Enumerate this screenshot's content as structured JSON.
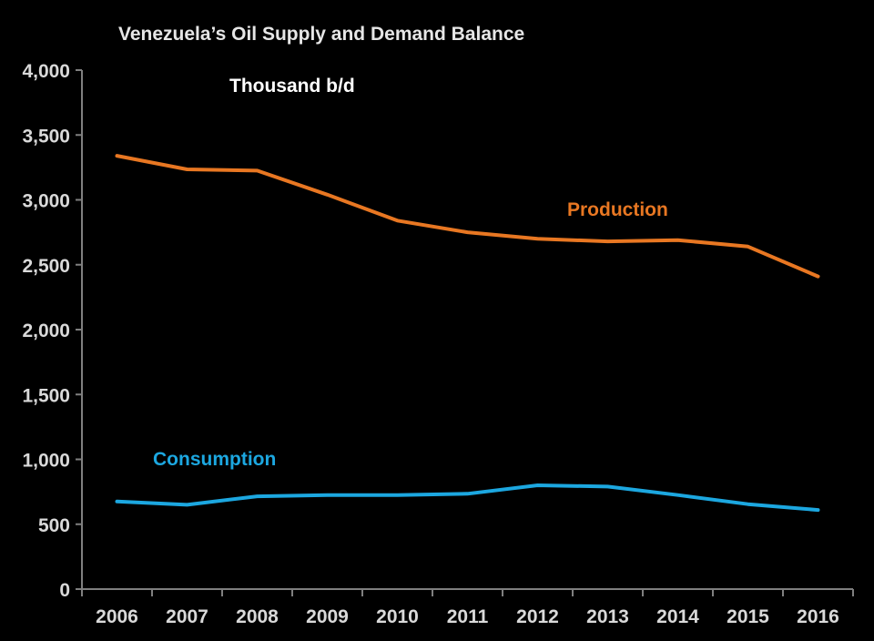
{
  "chart_data": {
    "type": "line",
    "title": "Venezuela’s Oil Supply and Demand Balance",
    "unit_label": "Thousand b/d",
    "xlabel": "",
    "ylabel": "",
    "x": [
      "2006",
      "2007",
      "2008",
      "2009",
      "2010",
      "2011",
      "2012",
      "2013",
      "2014",
      "2015",
      "2016"
    ],
    "ylim": [
      0,
      4000
    ],
    "yticks": [
      0,
      500,
      1000,
      1500,
      2000,
      2500,
      3000,
      3500,
      4000
    ],
    "ytick_labels": [
      "0",
      "500",
      "1,000",
      "1,500",
      "2,000",
      "2,500",
      "3,000",
      "3,500",
      "4,000"
    ],
    "grid": false,
    "legend": "inline-labels",
    "series": [
      {
        "name": "Production",
        "color": "#e87722",
        "values": [
          3340,
          3235,
          3225,
          3040,
          2840,
          2750,
          2700,
          2680,
          2690,
          2640,
          2410
        ]
      },
      {
        "name": "Consumption",
        "color": "#1ca7e0",
        "values": [
          675,
          650,
          715,
          725,
          725,
          735,
          800,
          790,
          725,
          655,
          610
        ]
      }
    ],
    "colors": {
      "background": "#000000",
      "axis": "#7f7f7f",
      "text": "#d9d9d9"
    }
  }
}
